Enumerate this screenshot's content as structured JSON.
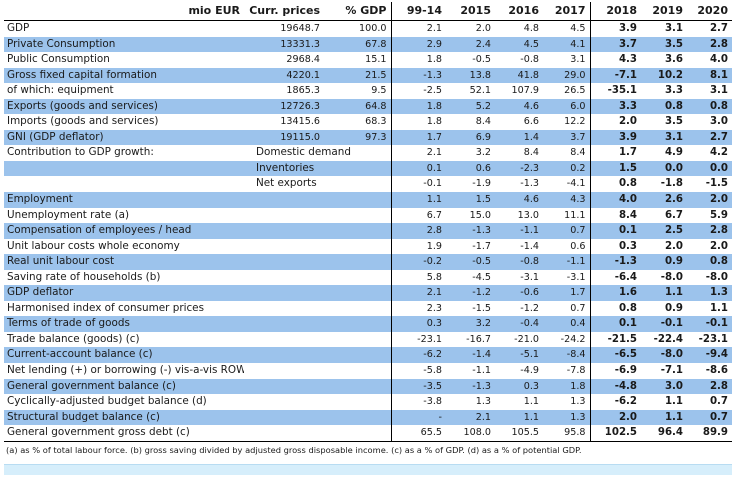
{
  "header": {
    "label": "mio EUR",
    "curr_prices": "Curr. prices",
    "pct_gdp": "% GDP",
    "years": [
      "99-14",
      "2015",
      "2016",
      "2017",
      "2018",
      "2019",
      "2020"
    ]
  },
  "rows": [
    {
      "label": "GDP",
      "sub": "",
      "curr": "19648.7",
      "pct": "100.0",
      "v": [
        "2.1",
        "2.0",
        "4.8",
        "4.5",
        "3.9",
        "3.1",
        "2.7"
      ],
      "shaded": false
    },
    {
      "label": "Private Consumption",
      "sub": "",
      "curr": "13331.3",
      "pct": "67.8",
      "v": [
        "2.9",
        "2.4",
        "4.5",
        "4.1",
        "3.7",
        "3.5",
        "2.8"
      ],
      "shaded": true
    },
    {
      "label": "Public Consumption",
      "sub": "",
      "curr": "2968.4",
      "pct": "15.1",
      "v": [
        "1.8",
        "-0.5",
        "-0.8",
        "3.1",
        "4.3",
        "3.6",
        "4.0"
      ],
      "shaded": false
    },
    {
      "label": "Gross fixed capital formation",
      "sub": "",
      "curr": "4220.1",
      "pct": "21.5",
      "v": [
        "-1.3",
        "13.8",
        "41.8",
        "29.0",
        "-7.1",
        "10.2",
        "8.1"
      ],
      "shaded": true
    },
    {
      "label": "of which: equipment",
      "sub": "",
      "curr": "1865.3",
      "pct": "9.5",
      "v": [
        "-2.5",
        "52.1",
        "107.9",
        "26.5",
        "-35.1",
        "3.3",
        "3.1"
      ],
      "shaded": false
    },
    {
      "label": "Exports (goods and services)",
      "sub": "",
      "curr": "12726.3",
      "pct": "64.8",
      "v": [
        "1.8",
        "5.2",
        "4.6",
        "6.0",
        "3.3",
        "0.8",
        "0.8"
      ],
      "shaded": true
    },
    {
      "label": "Imports (goods and services)",
      "sub": "",
      "curr": "13415.6",
      "pct": "68.3",
      "v": [
        "1.8",
        "8.4",
        "6.6",
        "12.2",
        "2.0",
        "3.5",
        "3.0"
      ],
      "shaded": false
    },
    {
      "label": "GNI (GDP deflator)",
      "sub": "",
      "curr": "19115.0",
      "pct": "97.3",
      "v": [
        "1.7",
        "6.9",
        "1.4",
        "3.7",
        "3.9",
        "3.1",
        "2.7"
      ],
      "shaded": true
    },
    {
      "label": "Contribution to GDP growth:",
      "sub": "Domestic demand",
      "curr": "",
      "pct": "",
      "v": [
        "2.1",
        "3.2",
        "8.4",
        "8.4",
        "1.7",
        "4.9",
        "4.2"
      ],
      "shaded": false
    },
    {
      "label": "",
      "sub": "Inventories",
      "curr": "",
      "pct": "",
      "v": [
        "0.1",
        "0.6",
        "-2.3",
        "0.2",
        "1.5",
        "0.0",
        "0.0"
      ],
      "shaded": true
    },
    {
      "label": "",
      "sub": "Net exports",
      "curr": "",
      "pct": "",
      "v": [
        "-0.1",
        "-1.9",
        "-1.3",
        "-4.1",
        "0.8",
        "-1.8",
        "-1.5"
      ],
      "shaded": false
    },
    {
      "label": "Employment",
      "sub": "",
      "curr": "",
      "pct": "",
      "v": [
        "1.1",
        "1.5",
        "4.6",
        "4.3",
        "4.0",
        "2.6",
        "2.0"
      ],
      "shaded": true
    },
    {
      "label": "Unemployment rate (a)",
      "sub": "",
      "curr": "",
      "pct": "",
      "v": [
        "6.7",
        "15.0",
        "13.0",
        "11.1",
        "8.4",
        "6.7",
        "5.9"
      ],
      "shaded": false
    },
    {
      "label": "Compensation of employees / head",
      "sub": "",
      "curr": "",
      "pct": "",
      "v": [
        "2.8",
        "-1.3",
        "-1.1",
        "0.7",
        "0.1",
        "2.5",
        "2.8"
      ],
      "shaded": true
    },
    {
      "label": "Unit labour costs whole economy",
      "sub": "",
      "curr": "",
      "pct": "",
      "v": [
        "1.9",
        "-1.7",
        "-1.4",
        "0.6",
        "0.3",
        "2.0",
        "2.0"
      ],
      "shaded": false
    },
    {
      "label": "Real unit labour cost",
      "sub": "",
      "curr": "",
      "pct": "",
      "v": [
        "-0.2",
        "-0.5",
        "-0.8",
        "-1.1",
        "-1.3",
        "0.9",
        "0.8"
      ],
      "shaded": true
    },
    {
      "label": "Saving rate of households (b)",
      "sub": "",
      "curr": "",
      "pct": "",
      "v": [
        "5.8",
        "-4.5",
        "-3.1",
        "-3.1",
        "-6.4",
        "-8.0",
        "-8.0"
      ],
      "shaded": false
    },
    {
      "label": "GDP deflator",
      "sub": "",
      "curr": "",
      "pct": "",
      "v": [
        "2.1",
        "-1.2",
        "-0.6",
        "1.7",
        "1.6",
        "1.1",
        "1.3"
      ],
      "shaded": true
    },
    {
      "label": "Harmonised index of consumer prices",
      "sub": "",
      "curr": "",
      "pct": "",
      "v": [
        "2.3",
        "-1.5",
        "-1.2",
        "0.7",
        "0.8",
        "0.9",
        "1.1"
      ],
      "shaded": false
    },
    {
      "label": "Terms of trade of goods",
      "sub": "",
      "curr": "",
      "pct": "",
      "v": [
        "0.3",
        "3.2",
        "-0.4",
        "0.4",
        "0.1",
        "-0.1",
        "-0.1"
      ],
      "shaded": true
    },
    {
      "label": "Trade balance (goods) (c)",
      "sub": "",
      "curr": "",
      "pct": "",
      "v": [
        "-23.1",
        "-16.7",
        "-21.0",
        "-24.2",
        "-21.5",
        "-22.4",
        "-23.1"
      ],
      "shaded": false
    },
    {
      "label": "Current-account balance (c)",
      "sub": "",
      "curr": "",
      "pct": "",
      "v": [
        "-6.2",
        "-1.4",
        "-5.1",
        "-8.4",
        "-6.5",
        "-8.0",
        "-9.4"
      ],
      "shaded": true
    },
    {
      "label": "Net lending (+) or borrowing (-) vis-a-vis ROW (c)",
      "sub": "",
      "curr": "",
      "pct": "",
      "v": [
        "-5.8",
        "-1.1",
        "-4.9",
        "-7.8",
        "-6.9",
        "-7.1",
        "-8.6"
      ],
      "shaded": false
    },
    {
      "label": "General government balance (c)",
      "sub": "",
      "curr": "",
      "pct": "",
      "v": [
        "-3.5",
        "-1.3",
        "0.3",
        "1.8",
        "-4.8",
        "3.0",
        "2.8"
      ],
      "shaded": true
    },
    {
      "label": "Cyclically-adjusted budget balance (d)",
      "sub": "",
      "curr": "",
      "pct": "",
      "v": [
        "-3.8",
        "1.3",
        "1.1",
        "1.3",
        "-6.2",
        "1.1",
        "0.7"
      ],
      "shaded": false
    },
    {
      "label": "Structural budget balance (c)",
      "sub": "",
      "curr": "",
      "pct": "",
      "v": [
        "-",
        "2.1",
        "1.1",
        "1.3",
        "2.0",
        "1.1",
        "0.7"
      ],
      "shaded": true
    },
    {
      "label": "General government gross debt (c)",
      "sub": "",
      "curr": "",
      "pct": "",
      "v": [
        "65.5",
        "108.0",
        "105.5",
        "95.8",
        "102.5",
        "96.4",
        "89.9"
      ],
      "shaded": false
    }
  ],
  "footnote": "(a) as % of total labour force. (b) gross saving divided by adjusted gross disposable income. (c) as a % of GDP. (d) as a % of potential GDP.",
  "colors": {
    "row_shade": "#9cc3ec",
    "bottom_bar": "#d6eefb"
  }
}
